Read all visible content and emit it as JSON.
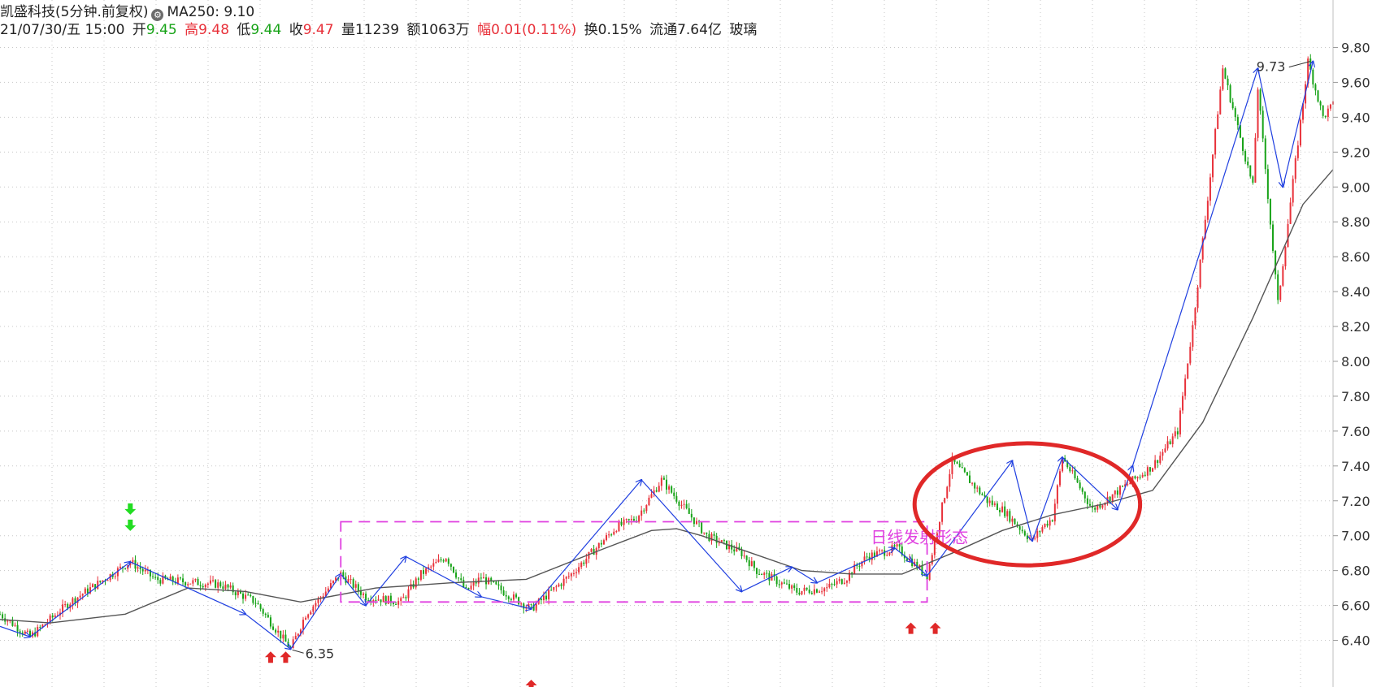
{
  "header": {
    "stock_title": "凯盛科技(5分钟.前复权)",
    "ma_label": "MA250: 9.10",
    "date": "21/07/30/五 15:00",
    "open_label": "开",
    "open_value": "9.45",
    "high_label": "高",
    "high_value": "9.48",
    "low_label": "低",
    "low_value": "9.44",
    "close_label": "收",
    "close_value": "9.47",
    "volume_label": "量",
    "volume_value": "11239",
    "amount_label": "额",
    "amount_value": "1063万",
    "change_label": "幅",
    "change_value": "0.01(0.11%)",
    "turnover_label": "换",
    "turnover_value": "0.15%",
    "float_label": "流通",
    "float_value": "7.64亿",
    "sector": "玻璃"
  },
  "chart_data": {
    "type": "line",
    "x_unit": "5-minute bar index",
    "ylim": [
      6.3,
      9.9
    ],
    "y_ticks": [
      "9.80",
      "9.60",
      "9.40",
      "9.20",
      "9.00",
      "8.80",
      "8.60",
      "8.40",
      "8.20",
      "8.00",
      "7.80",
      "7.60",
      "7.40",
      "7.20",
      "7.00",
      "6.80",
      "6.60",
      "6.40"
    ],
    "grid": true,
    "colors": {
      "up": "#e8313a",
      "down": "#18a318",
      "zigzag": "#1f3fe0",
      "ma": "#555555",
      "box": "#e040e0",
      "circle": "#e02828"
    },
    "price_series": {
      "x": [
        0,
        24,
        56,
        104,
        124,
        176,
        204,
        232,
        244,
        272,
        292,
        320,
        336,
        356,
        372,
        384,
        424,
        456,
        492,
        508,
        528,
        564,
        592,
        604,
        636,
        660,
        676,
        680,
        692,
        716,
        728,
        740,
        760,
        788,
        800,
        824,
        832,
        840,
        848,
        872,
        920,
        940,
        952,
        976,
        1000,
        1004,
        1020,
        1044,
        1056,
        1064
      ],
      "y": [
        6.55,
        6.42,
        6.62,
        6.85,
        6.75,
        6.72,
        6.62,
        6.35,
        6.55,
        6.78,
        6.65,
        6.62,
        6.78,
        6.88,
        6.68,
        6.76,
        6.58,
        6.78,
        7.05,
        7.1,
        7.32,
        7.0,
        6.9,
        6.8,
        6.68,
        6.7,
        6.76,
        6.8,
        6.88,
        6.93,
        6.85,
        6.77,
        7.43,
        7.2,
        7.15,
        6.97,
        7.05,
        7.1,
        7.45,
        7.15,
        7.4,
        7.6,
        8.2,
        9.68,
        9.0,
        9.57,
        8.33,
        9.72,
        9.4,
        9.47
      ]
    },
    "zigzag": {
      "x": [
        0,
        24,
        104,
        196,
        232,
        272,
        292,
        324,
        384,
        424,
        512,
        592,
        632,
        652,
        714,
        728,
        740,
        808,
        824,
        848,
        892,
        904,
        1004,
        1024,
        1048
      ],
      "y": [
        6.48,
        6.42,
        6.85,
        6.55,
        6.35,
        6.78,
        6.6,
        6.88,
        6.65,
        6.58,
        7.32,
        6.68,
        6.82,
        6.73,
        6.93,
        6.85,
        6.77,
        7.43,
        6.97,
        7.45,
        7.15,
        7.4,
        9.68,
        9.0,
        9.72
      ]
    },
    "ma250": {
      "x": [
        0,
        40,
        100,
        150,
        196,
        240,
        300,
        360,
        420,
        480,
        520,
        540,
        560,
        600,
        640,
        680,
        720,
        760,
        800,
        840,
        880,
        920,
        960,
        1000,
        1040,
        1064
      ],
      "y": [
        6.52,
        6.5,
        6.55,
        6.7,
        6.68,
        6.62,
        6.7,
        6.73,
        6.75,
        6.92,
        7.03,
        7.04,
        7.0,
        6.9,
        6.8,
        6.78,
        6.78,
        6.9,
        7.03,
        7.12,
        7.18,
        7.26,
        7.65,
        8.25,
        8.9,
        9.1
      ]
    },
    "annotations": {
      "high_label": "9.73",
      "low_label": "6.35",
      "pattern_label": "日线发射形态"
    }
  }
}
